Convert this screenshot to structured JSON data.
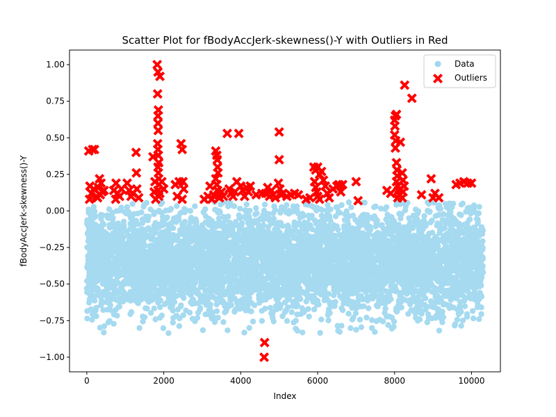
{
  "chart_data": {
    "type": "scatter",
    "title": "Scatter Plot for fBodyAccJerk-skewness()-Y with Outliers in Red",
    "xlabel": "Index",
    "ylabel": "fBodyAccJerk-skewness()-Y",
    "xlim": [
      -450,
      10750
    ],
    "ylim": [
      -1.1,
      1.1
    ],
    "x_ticks": [
      0,
      2000,
      4000,
      6000,
      8000,
      10000
    ],
    "y_ticks": [
      -1.0,
      -0.75,
      -0.5,
      -0.25,
      0.0,
      0.25,
      0.5,
      0.75,
      1.0
    ],
    "x_tick_labels": [
      "0",
      "2000",
      "4000",
      "6000",
      "8000",
      "10000"
    ],
    "y_tick_labels": [
      "−1.00",
      "−0.75",
      "−0.50",
      "−0.25",
      "0.00",
      "0.25",
      "0.50",
      "0.75",
      "1.00"
    ],
    "grid": false,
    "legend": {
      "position": "top-right",
      "entries": [
        "Data",
        "Outliers"
      ]
    },
    "series": [
      {
        "name": "Data",
        "marker": "circle",
        "color": "#87ceeb",
        "alpha": 0.75,
        "n_points": 10299,
        "x_range": [
          0,
          10298
        ],
        "typical_y_range": [
          -0.75,
          0.05
        ],
        "y_center": -0.35
      },
      {
        "name": "Outliers",
        "marker": "X",
        "color": "#ff0000",
        "points": [
          [
            50,
            0.41
          ],
          [
            150,
            0.42
          ],
          [
            200,
            0.42
          ],
          [
            80,
            0.17
          ],
          [
            120,
            0.12
          ],
          [
            70,
            0.08
          ],
          [
            180,
            0.15
          ],
          [
            250,
            0.1
          ],
          [
            330,
            0.22
          ],
          [
            370,
            0.19
          ],
          [
            300,
            0.16
          ],
          [
            400,
            0.13
          ],
          [
            350,
            0.11
          ],
          [
            450,
            0.14
          ],
          [
            280,
            0.09
          ],
          [
            700,
            0.14
          ],
          [
            760,
            0.19
          ],
          [
            800,
            0.12
          ],
          [
            850,
            0.1
          ],
          [
            900,
            0.15
          ],
          [
            750,
            0.08
          ],
          [
            1050,
            0.19
          ],
          [
            1100,
            0.14
          ],
          [
            1150,
            0.1
          ],
          [
            1200,
            0.12
          ],
          [
            1280,
            0.4
          ],
          [
            1290,
            0.26
          ],
          [
            1300,
            0.15
          ],
          [
            1350,
            0.09
          ],
          [
            1720,
            0.37
          ],
          [
            1750,
            0.13
          ],
          [
            1770,
            0.2
          ],
          [
            1790,
            0.08
          ],
          [
            1830,
            1.0
          ],
          [
            1850,
            0.95
          ],
          [
            1900,
            0.92
          ],
          [
            1840,
            0.8
          ],
          [
            1860,
            0.69
          ],
          [
            1850,
            0.65
          ],
          [
            1850,
            0.6
          ],
          [
            1855,
            0.55
          ],
          [
            1840,
            0.46
          ],
          [
            1850,
            0.42
          ],
          [
            1860,
            0.38
          ],
          [
            1870,
            0.33
          ],
          [
            1850,
            0.3
          ],
          [
            1860,
            0.26
          ],
          [
            1870,
            0.22
          ],
          [
            1880,
            0.18
          ],
          [
            1850,
            0.14
          ],
          [
            1870,
            0.1
          ],
          [
            1900,
            0.12
          ],
          [
            1950,
            0.2
          ],
          [
            2000,
            0.15
          ],
          [
            2300,
            0.18
          ],
          [
            2350,
            0.1
          ],
          [
            2400,
            0.2
          ],
          [
            2450,
            0.46
          ],
          [
            2480,
            0.42
          ],
          [
            2500,
            0.2
          ],
          [
            2520,
            0.15
          ],
          [
            2480,
            0.08
          ],
          [
            3050,
            0.08
          ],
          [
            3150,
            0.1
          ],
          [
            3200,
            0.17
          ],
          [
            3250,
            0.08
          ],
          [
            3300,
            0.11
          ],
          [
            3350,
            0.41
          ],
          [
            3380,
            0.38
          ],
          [
            3390,
            0.35
          ],
          [
            3400,
            0.3
          ],
          [
            3410,
            0.26
          ],
          [
            3350,
            0.22
          ],
          [
            3380,
            0.18
          ],
          [
            3400,
            0.14
          ],
          [
            3420,
            0.11
          ],
          [
            3450,
            0.09
          ],
          [
            3500,
            0.13
          ],
          [
            3550,
            0.1
          ],
          [
            3650,
            0.53
          ],
          [
            3700,
            0.15
          ],
          [
            3750,
            0.12
          ],
          [
            3800,
            0.1
          ],
          [
            3850,
            0.13
          ],
          [
            3950,
            0.53
          ],
          [
            3900,
            0.2
          ],
          [
            4000,
            0.17
          ],
          [
            4050,
            0.14
          ],
          [
            4100,
            0.1
          ],
          [
            4150,
            0.16
          ],
          [
            4200,
            0.13
          ],
          [
            4250,
            0.17
          ],
          [
            4400,
            0.11
          ],
          [
            4550,
            0.12
          ],
          [
            4620,
            -0.9
          ],
          [
            4610,
            -1.0
          ],
          [
            4650,
            0.12
          ],
          [
            4700,
            0.16
          ],
          [
            4750,
            0.1
          ],
          [
            4800,
            0.14
          ],
          [
            4850,
            0.11
          ],
          [
            4900,
            0.09
          ],
          [
            5000,
            0.54
          ],
          [
            5000,
            0.35
          ],
          [
            4980,
            0.19
          ],
          [
            5020,
            0.15
          ],
          [
            5050,
            0.11
          ],
          [
            5100,
            0.12
          ],
          [
            5200,
            0.1
          ],
          [
            5300,
            0.11
          ],
          [
            5400,
            0.12
          ],
          [
            5500,
            0.11
          ],
          [
            5700,
            0.08
          ],
          [
            5800,
            0.09
          ],
          [
            5900,
            0.3
          ],
          [
            5950,
            0.28
          ],
          [
            6000,
            0.3
          ],
          [
            6050,
            0.25
          ],
          [
            5920,
            0.2
          ],
          [
            5950,
            0.16
          ],
          [
            5980,
            0.13
          ],
          [
            6000,
            0.1
          ],
          [
            6050,
            0.08
          ],
          [
            6100,
            0.27
          ],
          [
            6150,
            0.21
          ],
          [
            6200,
            0.17
          ],
          [
            6250,
            0.12
          ],
          [
            6300,
            0.09
          ],
          [
            6400,
            0.15
          ],
          [
            6500,
            0.17
          ],
          [
            6550,
            0.18
          ],
          [
            6600,
            0.13
          ],
          [
            6650,
            0.18
          ],
          [
            7000,
            0.2
          ],
          [
            7050,
            0.07
          ],
          [
            7800,
            0.14
          ],
          [
            7900,
            0.12
          ],
          [
            8000,
            0.62
          ],
          [
            8020,
            0.65
          ],
          [
            8050,
            0.66
          ],
          [
            8010,
            0.58
          ],
          [
            8000,
            0.52
          ],
          [
            8030,
            0.48
          ],
          [
            8020,
            0.43
          ],
          [
            8050,
            0.33
          ],
          [
            8060,
            0.28
          ],
          [
            8070,
            0.24
          ],
          [
            8050,
            0.2
          ],
          [
            8080,
            0.17
          ],
          [
            8100,
            0.14
          ],
          [
            8120,
            0.11
          ],
          [
            8080,
            0.09
          ],
          [
            8150,
            0.47
          ],
          [
            8200,
            0.26
          ],
          [
            8220,
            0.21
          ],
          [
            8250,
            0.17
          ],
          [
            8220,
            0.13
          ],
          [
            8200,
            0.09
          ],
          [
            8260,
            0.86
          ],
          [
            8450,
            0.77
          ],
          [
            8700,
            0.11
          ],
          [
            8950,
            0.22
          ],
          [
            9000,
            0.09
          ],
          [
            9050,
            0.12
          ],
          [
            9150,
            0.09
          ],
          [
            9600,
            0.18
          ],
          [
            9700,
            0.19
          ],
          [
            9800,
            0.2
          ],
          [
            9900,
            0.19
          ],
          [
            10000,
            0.19
          ]
        ]
      }
    ]
  }
}
